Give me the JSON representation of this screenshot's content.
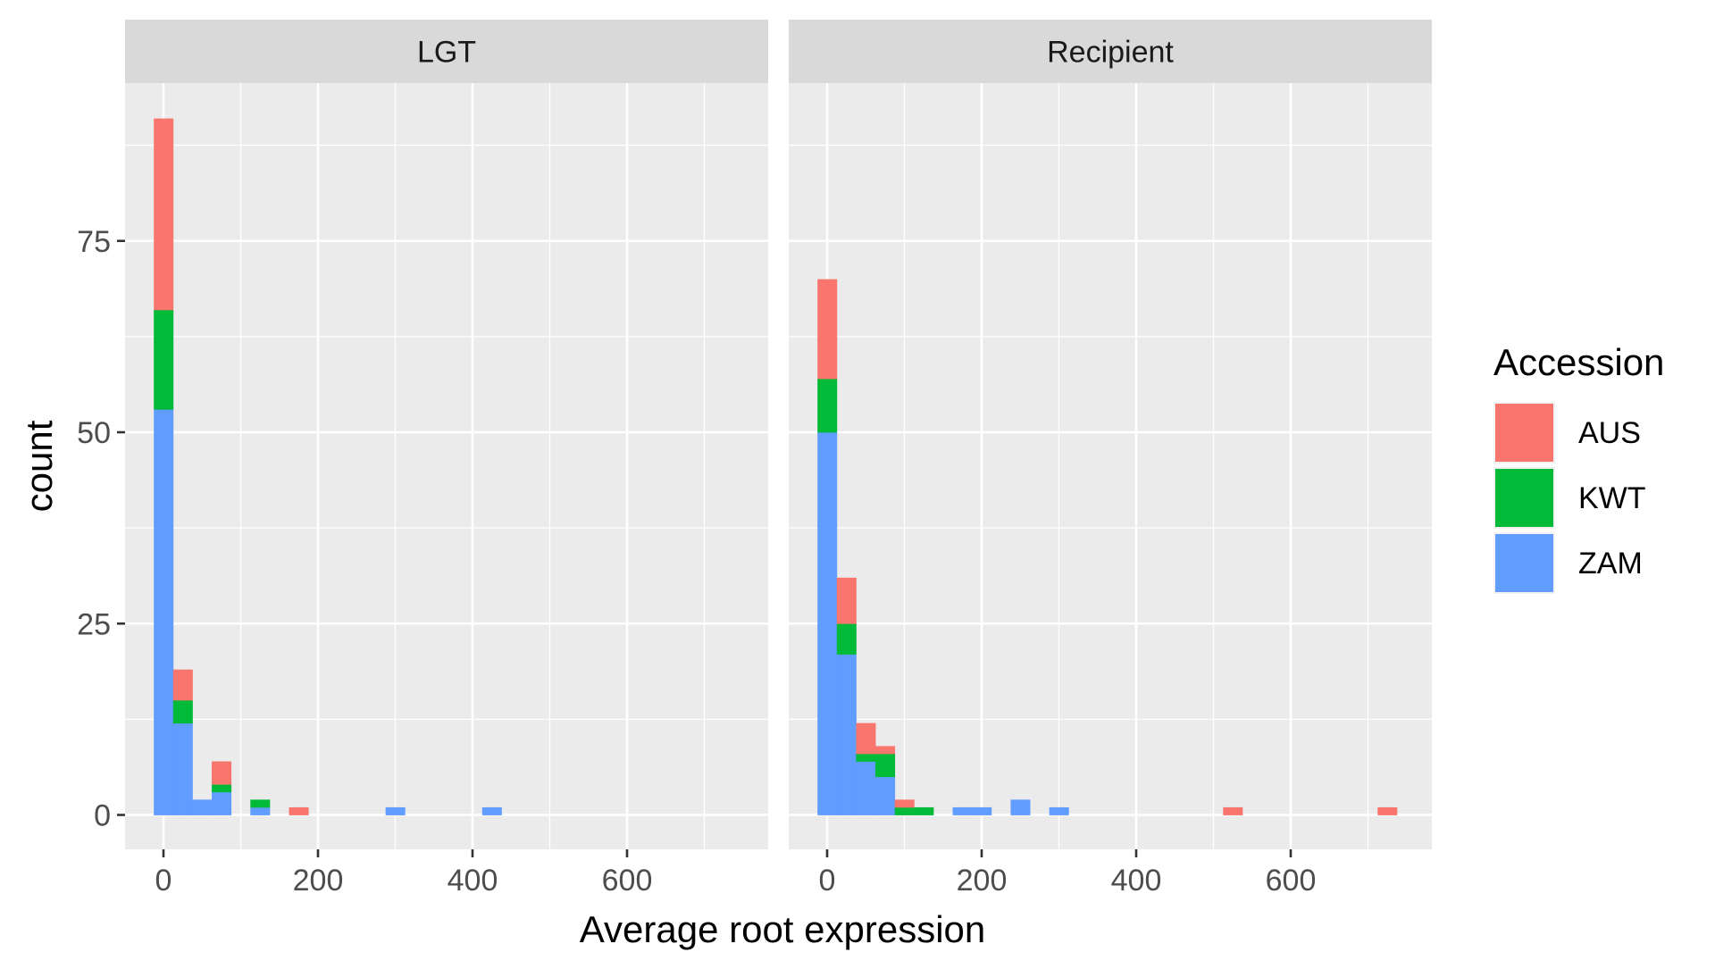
{
  "chart_data": {
    "type": "bar",
    "subtype": "stacked-histogram-faceted",
    "xlabel": "Average root expression",
    "ylabel": "count",
    "xlim": [
      -50,
      780
    ],
    "ylim": [
      -4.6,
      95.5
    ],
    "x_ticks": [
      0,
      200,
      400,
      600
    ],
    "y_ticks": [
      0,
      25,
      50,
      75
    ],
    "x_tick_labels": [
      "0",
      "200",
      "400",
      "600"
    ],
    "y_tick_labels": [
      "0",
      "25",
      "50",
      "75"
    ],
    "x_minor_gridlines": [
      100,
      300,
      500,
      700
    ],
    "y_minor_gridlines": [
      12.5,
      37.5,
      62.5,
      87.5
    ],
    "bin_width": 25,
    "grid": true,
    "legend": {
      "title": "Accession",
      "placement": "right",
      "entries": [
        "AUS",
        "KWT",
        "ZAM"
      ]
    },
    "colors": {
      "AUS": "#F8766D",
      "KWT": "#00BA38",
      "ZAM": "#619CFF",
      "panel_bg": "#EBEBEB",
      "strip_bg": "#D9D9D9"
    },
    "stack_order_bottom_to_top": [
      "ZAM",
      "KWT",
      "AUS"
    ],
    "facets": [
      {
        "label": "LGT",
        "bins": [
          {
            "x": 0,
            "ZAM": 53,
            "KWT": 13,
            "AUS": 25
          },
          {
            "x": 25,
            "ZAM": 12,
            "KWT": 3,
            "AUS": 4
          },
          {
            "x": 50,
            "ZAM": 2,
            "KWT": 0,
            "AUS": 0
          },
          {
            "x": 75,
            "ZAM": 3,
            "KWT": 1,
            "AUS": 3
          },
          {
            "x": 125,
            "ZAM": 1,
            "KWT": 1,
            "AUS": 0
          },
          {
            "x": 175,
            "ZAM": 0,
            "KWT": 0,
            "AUS": 1
          },
          {
            "x": 300,
            "ZAM": 1,
            "KWT": 0,
            "AUS": 0
          },
          {
            "x": 425,
            "ZAM": 1,
            "KWT": 0,
            "AUS": 0
          }
        ]
      },
      {
        "label": "Recipient",
        "bins": [
          {
            "x": 0,
            "ZAM": 50,
            "KWT": 7,
            "AUS": 13
          },
          {
            "x": 25,
            "ZAM": 21,
            "KWT": 4,
            "AUS": 6
          },
          {
            "x": 50,
            "ZAM": 7,
            "KWT": 1,
            "AUS": 4
          },
          {
            "x": 75,
            "ZAM": 5,
            "KWT": 3,
            "AUS": 1
          },
          {
            "x": 100,
            "ZAM": 0,
            "KWT": 1,
            "AUS": 1
          },
          {
            "x": 125,
            "ZAM": 0,
            "KWT": 1,
            "AUS": 0
          },
          {
            "x": 175,
            "ZAM": 1,
            "KWT": 0,
            "AUS": 0
          },
          {
            "x": 200,
            "ZAM": 1,
            "KWT": 0,
            "AUS": 0
          },
          {
            "x": 250,
            "ZAM": 2,
            "KWT": 0,
            "AUS": 0
          },
          {
            "x": 300,
            "ZAM": 1,
            "KWT": 0,
            "AUS": 0
          },
          {
            "x": 525,
            "ZAM": 0,
            "KWT": 0,
            "AUS": 1
          },
          {
            "x": 725,
            "ZAM": 0,
            "KWT": 0,
            "AUS": 1
          }
        ]
      }
    ]
  }
}
